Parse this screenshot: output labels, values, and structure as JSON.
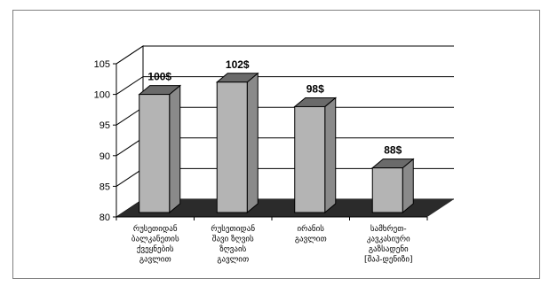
{
  "chart_data": {
    "type": "bar",
    "categories": [
      [
        "რუსეთიდან",
        "ბალკანეთის",
        "ქვეყნების",
        "გავლით"
      ],
      [
        "რუსეთიდან",
        "შავი ზღვის",
        "ზღვაის",
        "გავლით"
      ],
      [
        "ირანის",
        "გავლით"
      ],
      [
        "სამხრეთ-",
        "კავკასიური",
        "გაზსადენი",
        "[შაჰ-დენიზი]"
      ]
    ],
    "values": [
      100,
      102,
      98,
      88
    ],
    "data_labels": [
      "100$",
      "102$",
      "98$",
      "88$"
    ],
    "ylim": [
      80,
      105
    ],
    "yticks": [
      "80",
      "85",
      "90",
      "95",
      "100",
      "105"
    ],
    "grid": true,
    "legend": "none",
    "colors": {
      "bar_front": "#b4b4b4",
      "bar_side": "#8a8a8a",
      "bar_top": "#6a6a6a",
      "floor": "#2b2b2b",
      "grid": "#000000"
    }
  }
}
